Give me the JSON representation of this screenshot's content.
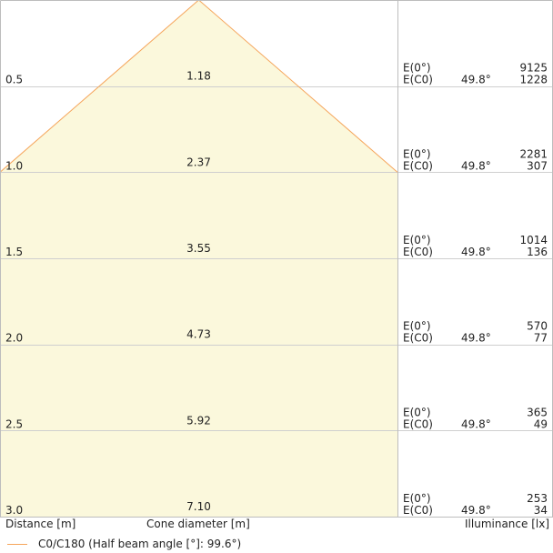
{
  "chart_data": {
    "type": "area",
    "x_label": "Distance [m]",
    "middle_label": "Cone diameter [m]",
    "right_label": "Illuminance [lx]",
    "row_label_top": "E(0°)",
    "row_label_bottom": "E(C0)",
    "rows": [
      {
        "distance": "0.5",
        "diameter": "1.18",
        "angle": "49.8°",
        "e0": "9125",
        "ec0": "1228"
      },
      {
        "distance": "1.0",
        "diameter": "2.37",
        "angle": "49.8°",
        "e0": "2281",
        "ec0": "307"
      },
      {
        "distance": "1.5",
        "diameter": "3.55",
        "angle": "49.8°",
        "e0": "1014",
        "ec0": "136"
      },
      {
        "distance": "2.0",
        "diameter": "4.73",
        "angle": "49.8°",
        "e0": "570",
        "ec0": "77"
      },
      {
        "distance": "2.5",
        "diameter": "5.92",
        "angle": "49.8°",
        "e0": "365",
        "ec0": "49"
      },
      {
        "distance": "3.0",
        "diameter": "7.10",
        "angle": "49.8°",
        "e0": "253",
        "ec0": "34"
      }
    ],
    "series": [
      {
        "name": "C0/C180 (Half beam angle [°]: 99.6°)",
        "half_beam_angle": 99.6,
        "color": "#f5a55b",
        "fill": "#fbf8dc"
      }
    ],
    "grid": true,
    "legend_position": "bottom-left"
  }
}
